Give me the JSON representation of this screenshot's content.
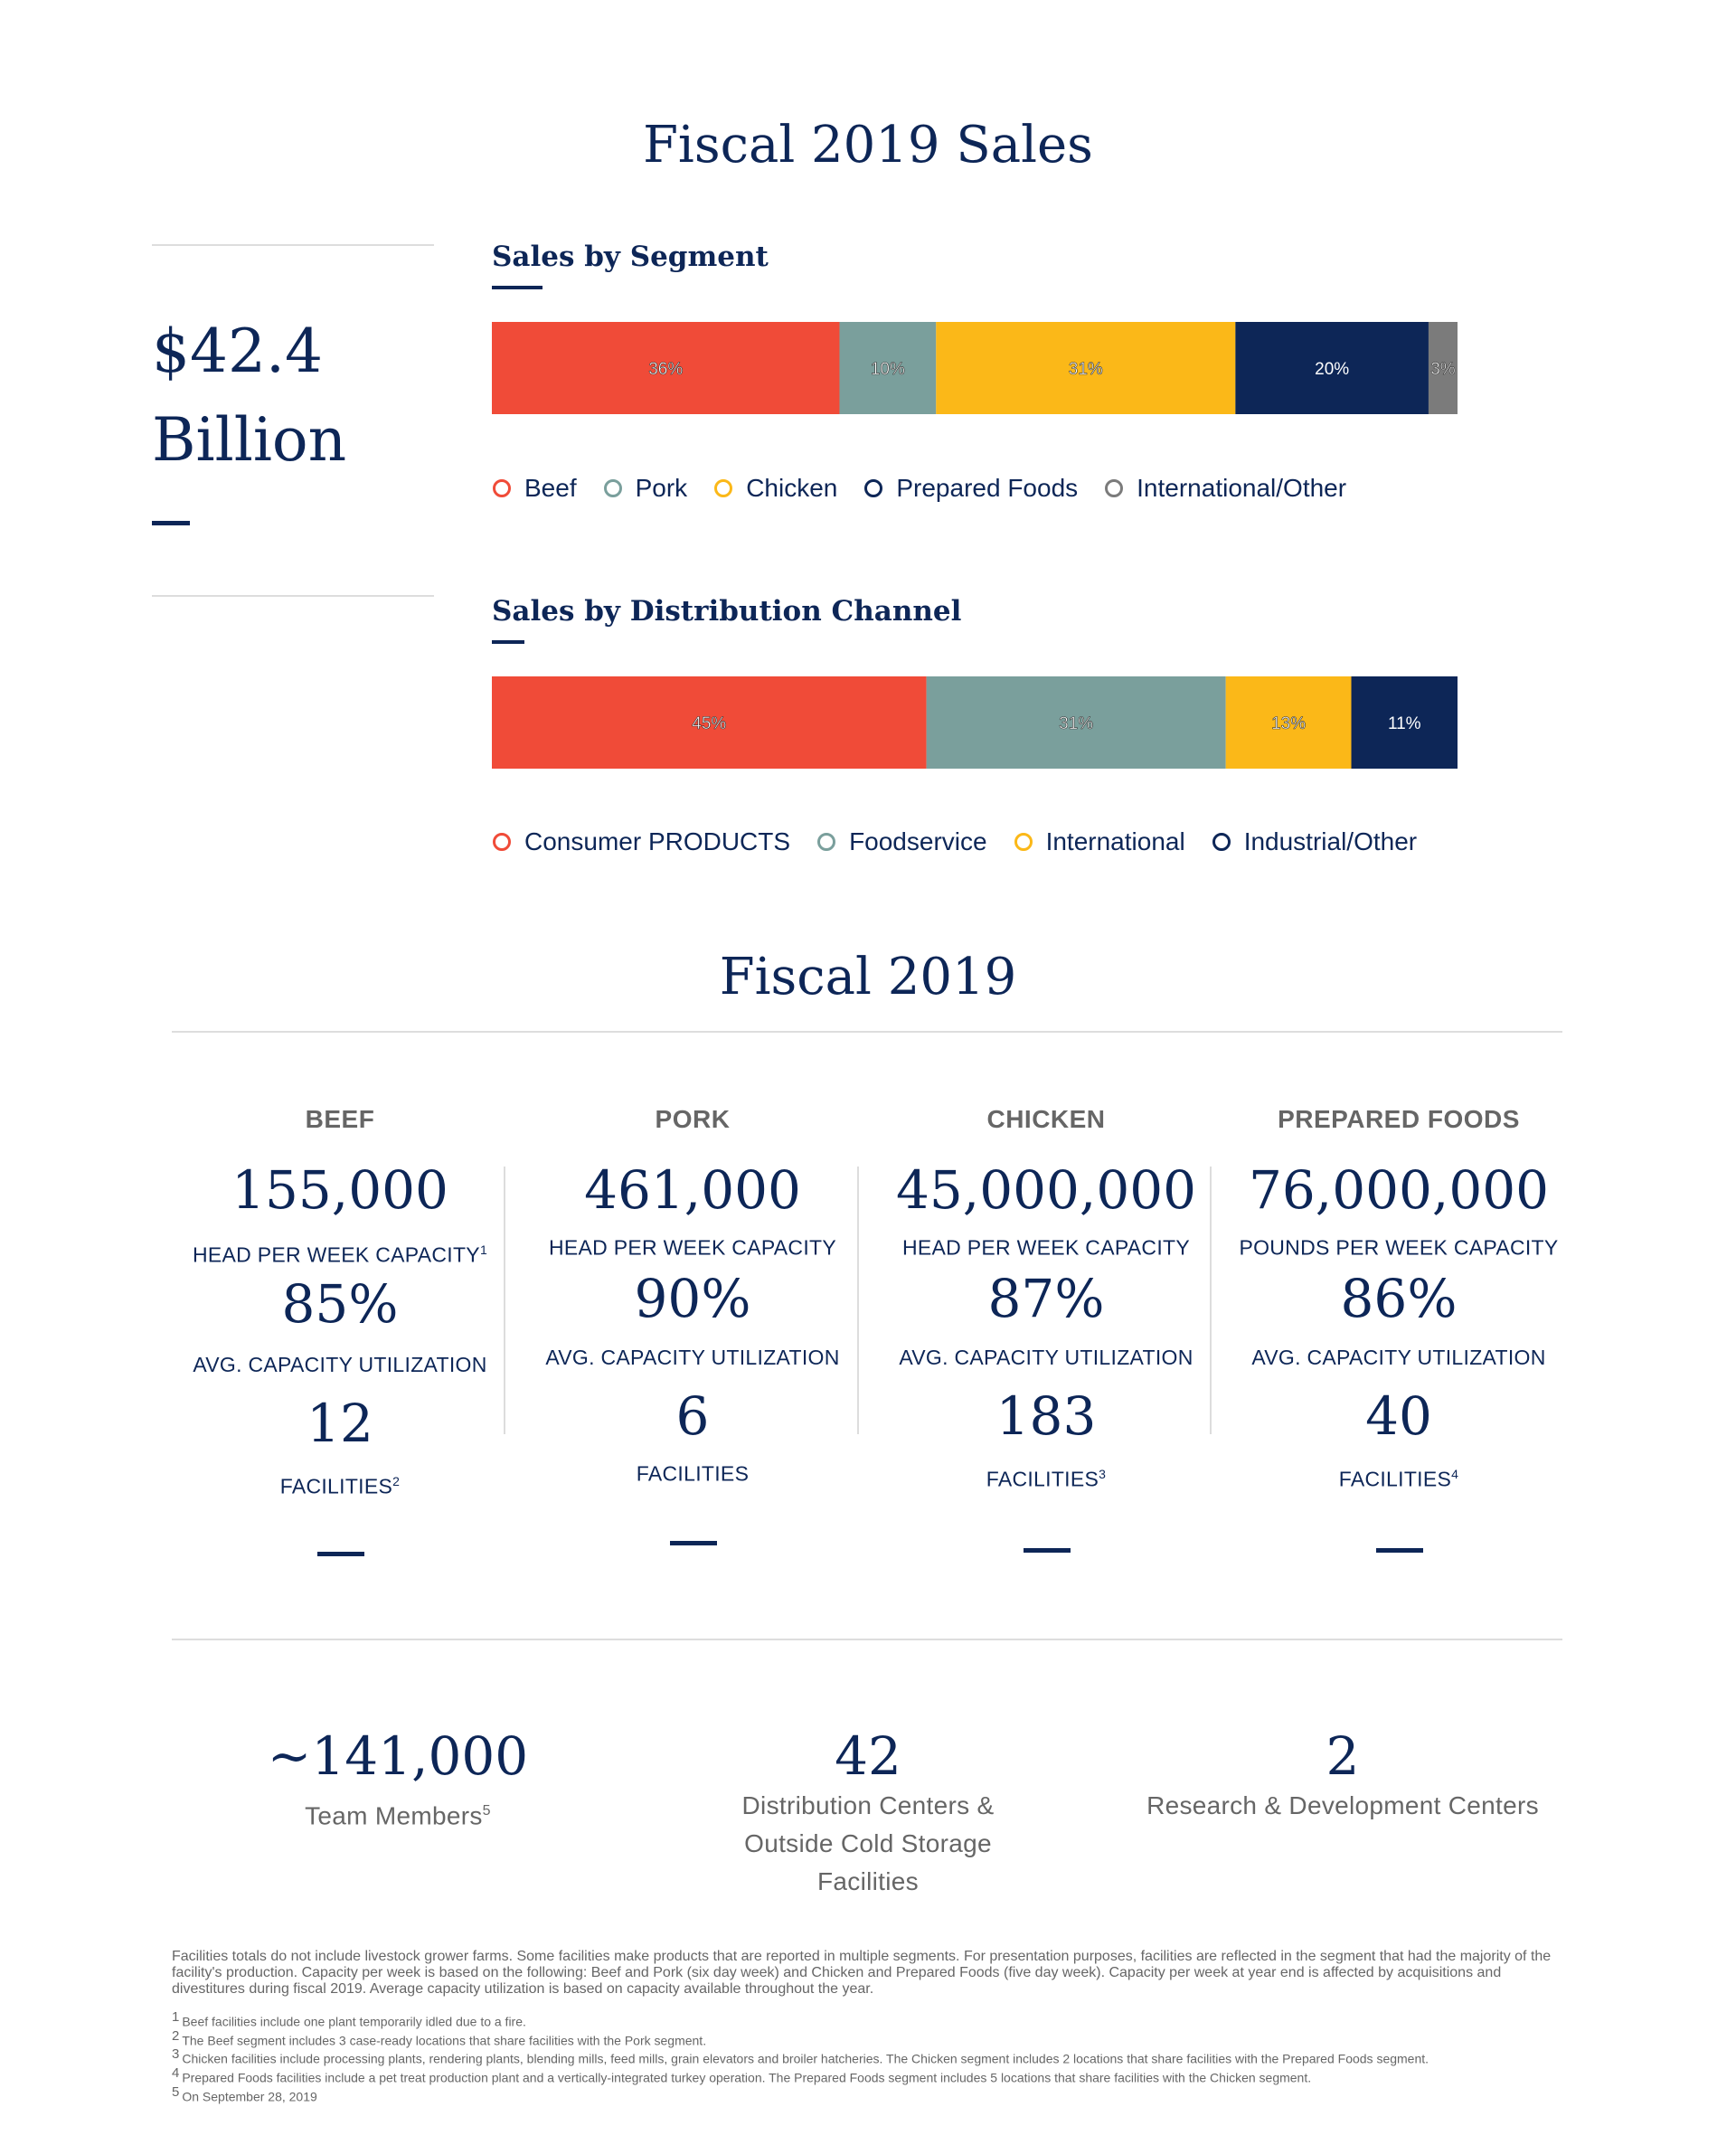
{
  "page": {
    "title": "Fiscal 2019 Sales",
    "total_sales": [
      "$42.4",
      "Billion"
    ]
  },
  "chart_data": [
    {
      "type": "bar",
      "orientation": "horizontal-stacked",
      "title": "Sales by Segment",
      "categories": [
        "Beef",
        "Pork",
        "Chicken",
        "Prepared Foods",
        "International/Other"
      ],
      "values": [
        36,
        10,
        31,
        20,
        3
      ],
      "labels": [
        "36%",
        "10%",
        "31%",
        "20%",
        "3%"
      ],
      "colors": [
        "#f04b38",
        "#7a9f9c",
        "#fbb818",
        "#0d2657",
        "#7b7b7b"
      ]
    },
    {
      "type": "bar",
      "orientation": "horizontal-stacked",
      "title": "Sales by Distribution Channel",
      "categories": [
        "Consumer PRODUCTS",
        "Foodservice",
        "International",
        "Industrial/Other"
      ],
      "values": [
        45,
        31,
        13,
        11
      ],
      "labels": [
        "45%",
        "31%",
        "13%",
        "11%"
      ],
      "colors": [
        "#f04b38",
        "#7a9f9c",
        "#fbb818",
        "#0d2657"
      ]
    }
  ],
  "operations": {
    "title": "Fiscal 2019",
    "segments": [
      {
        "name": "BEEF",
        "capacity": "155,000",
        "capacity_label": "HEAD PER WEEK CAPACITY",
        "capacity_sup": "1",
        "utilization": "85%",
        "utilization_label": "AVG. CAPACITY UTILIZATION",
        "facilities": "12",
        "facilities_label": "FACILITIES",
        "facilities_sup": "2"
      },
      {
        "name": "PORK",
        "capacity": "461,000",
        "capacity_label": "HEAD PER WEEK CAPACITY",
        "capacity_sup": "",
        "utilization": "90%",
        "utilization_label": "AVG. CAPACITY UTILIZATION",
        "facilities": "6",
        "facilities_label": "FACILITIES",
        "facilities_sup": ""
      },
      {
        "name": "CHICKEN",
        "capacity": "45,000,000",
        "capacity_label": "HEAD PER WEEK CAPACITY",
        "capacity_sup": "",
        "utilization": "87%",
        "utilization_label": "AVG. CAPACITY UTILIZATION",
        "facilities": "183",
        "facilities_label": "FACILITIES",
        "facilities_sup": "3"
      },
      {
        "name": "PREPARED FOODS",
        "capacity": "76,000,000",
        "capacity_label": "POUNDS PER WEEK CAPACITY",
        "capacity_sup": "",
        "utilization": "86%",
        "utilization_label": "AVG. CAPACITY UTILIZATION",
        "facilities": "40",
        "facilities_label": "FACILITIES",
        "facilities_sup": "4"
      }
    ]
  },
  "stats": [
    {
      "value": "~141,000",
      "label": "Team Members",
      "sup": "5"
    },
    {
      "value": "42",
      "label": "Distribution Centers & Outside Cold Storage Facilities",
      "sup": ""
    },
    {
      "value": "2",
      "label": "Research & Development Centers",
      "sup": ""
    }
  ],
  "notes": {
    "paragraph": "Facilities totals do not include livestock grower farms. Some facilities make products that are reported in multiple segments. For presentation purposes, facilities are reflected in the segment that had the majority of the facility's production. Capacity per week is based on the following: Beef and Pork (six day week) and Chicken and Prepared Foods (five day week). Capacity per week at year end is affected by acquisitions and divestitures during fiscal 2019. Average capacity utilization is based on capacity available throughout the year.",
    "footnotes": [
      {
        "num": "1",
        "text": "Beef facilities include one plant temporarily idled due to a fire."
      },
      {
        "num": "2",
        "text": "The Beef segment includes 3 case-ready locations that share facilities with the Pork segment."
      },
      {
        "num": "3",
        "text": "Chicken facilities include processing plants, rendering plants, blending mills, feed mills, grain elevators and broiler hatcheries. The Chicken segment includes 2 locations that share facilities with the Prepared Foods segment."
      },
      {
        "num": "4",
        "text": "Prepared Foods facilities include a pet treat production plant and a vertically-integrated turkey operation. The Prepared Foods segment includes 5 locations that share facilities with the Chicken segment."
      },
      {
        "num": "5",
        "text": "On September 28, 2019"
      }
    ]
  }
}
